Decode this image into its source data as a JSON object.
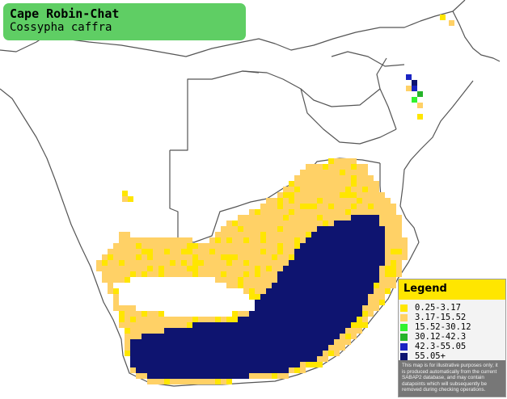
{
  "species": {
    "common_name": "Cape Robin-Chat",
    "scientific_name": "Cossypha caffra"
  },
  "legend": {
    "title": "Legend",
    "items": [
      {
        "label": "0.25-3.17",
        "color": "#ffe600"
      },
      {
        "label": "3.17-15.52",
        "color": "#ffd166"
      },
      {
        "label": "15.52-30.12",
        "color": "#31f22f"
      },
      {
        "label": "30.12-42.3",
        "color": "#25b42a"
      },
      {
        "label": "42.3-55.05",
        "color": "#1a24c2"
      },
      {
        "label": "55.05+",
        "color": "#0e1470"
      }
    ],
    "note": "This map is for illustrative purposes only; it is produced automatically from the current SABAP2 database, and may contain datapoints which will subsequently be removed during checking operations."
  },
  "map": {
    "ocean_color": "#ffffff",
    "border_color": "#555555"
  }
}
